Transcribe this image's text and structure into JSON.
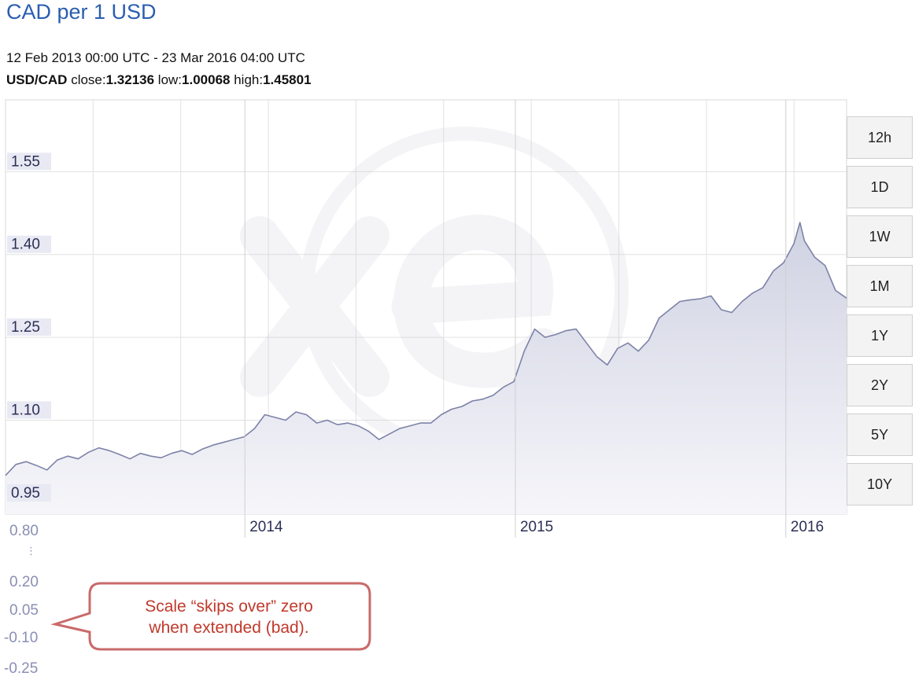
{
  "header": {
    "title": "CAD per 1 USD",
    "date_range": "12 Feb 2013 00:00 UTC - 23 Mar 2016 04:00 UTC",
    "pair": "USD/CAD",
    "close_label": "close:",
    "close_value": "1.32136",
    "low_label": "low:",
    "low_value": "1.00068",
    "high_label": "high:",
    "high_value": "1.45801"
  },
  "range_buttons": [
    "12h",
    "1D",
    "1W",
    "1M",
    "1Y",
    "2Y",
    "5Y",
    "10Y"
  ],
  "extended_scale": {
    "labels": [
      "0.80",
      "0.20",
      "0.05",
      "-0.10",
      "-0.25"
    ],
    "ellipsis": "⋮"
  },
  "callout": {
    "line1": "Scale “skips over” zero",
    "line2": "when extended (bad)."
  },
  "colors": {
    "title": "#2a5db0",
    "line": "#7d82a8",
    "area": "#e4e6f0",
    "axis_label": "#8a8fb3",
    "callout": "#c0392b",
    "grid": "#e1e1e1"
  },
  "chart_data": {
    "type": "area",
    "x": [
      "2013-02-12",
      "2013-02-26",
      "2013-03-12",
      "2013-03-26",
      "2013-04-09",
      "2013-04-23",
      "2013-05-07",
      "2013-05-21",
      "2013-06-04",
      "2013-06-18",
      "2013-07-02",
      "2013-07-16",
      "2013-07-30",
      "2013-08-13",
      "2013-08-27",
      "2013-09-10",
      "2013-09-24",
      "2013-10-08",
      "2013-10-22",
      "2013-11-05",
      "2013-11-19",
      "2013-12-03",
      "2013-12-17",
      "2013-12-31",
      "2014-01-14",
      "2014-01-28",
      "2014-02-11",
      "2014-02-25",
      "2014-03-11",
      "2014-03-25",
      "2014-04-08",
      "2014-04-22",
      "2014-05-06",
      "2014-05-20",
      "2014-06-03",
      "2014-06-17",
      "2014-07-01",
      "2014-07-15",
      "2014-07-29",
      "2014-08-12",
      "2014-08-26",
      "2014-09-09",
      "2014-09-23",
      "2014-10-07",
      "2014-10-21",
      "2014-11-04",
      "2014-11-18",
      "2014-12-02",
      "2014-12-16",
      "2014-12-30",
      "2015-01-13",
      "2015-01-27",
      "2015-02-10",
      "2015-02-24",
      "2015-03-10",
      "2015-03-24",
      "2015-04-07",
      "2015-04-21",
      "2015-05-05",
      "2015-05-19",
      "2015-06-02",
      "2015-06-16",
      "2015-06-30",
      "2015-07-14",
      "2015-07-28",
      "2015-08-11",
      "2015-08-25",
      "2015-09-08",
      "2015-09-22",
      "2015-10-06",
      "2015-10-20",
      "2015-11-03",
      "2015-11-17",
      "2015-12-01",
      "2015-12-15",
      "2015-12-29",
      "2016-01-12",
      "2016-01-20",
      "2016-01-26",
      "2016-02-09",
      "2016-02-23",
      "2016-03-08",
      "2016-03-23"
    ],
    "values": [
      1.0,
      1.02,
      1.025,
      1.018,
      1.01,
      1.028,
      1.035,
      1.03,
      1.042,
      1.05,
      1.045,
      1.038,
      1.03,
      1.04,
      1.035,
      1.032,
      1.04,
      1.045,
      1.038,
      1.048,
      1.055,
      1.06,
      1.065,
      1.07,
      1.085,
      1.11,
      1.105,
      1.1,
      1.115,
      1.11,
      1.095,
      1.1,
      1.092,
      1.095,
      1.09,
      1.08,
      1.065,
      1.075,
      1.085,
      1.09,
      1.095,
      1.095,
      1.11,
      1.12,
      1.125,
      1.135,
      1.138,
      1.145,
      1.16,
      1.17,
      1.225,
      1.265,
      1.25,
      1.255,
      1.262,
      1.265,
      1.24,
      1.215,
      1.2,
      1.23,
      1.24,
      1.225,
      1.245,
      1.285,
      1.3,
      1.315,
      1.318,
      1.32,
      1.325,
      1.3,
      1.295,
      1.315,
      1.33,
      1.34,
      1.37,
      1.385,
      1.42,
      1.458,
      1.425,
      1.395,
      1.38,
      1.335,
      1.321
    ],
    "title": "CAD per 1 USD",
    "y_ticks": [
      0.95,
      1.1,
      1.25,
      1.4,
      1.55
    ],
    "x_ticks": [
      "2014",
      "2015",
      "2016"
    ],
    "ylim": [
      0.93,
      1.68
    ],
    "xlim": [
      "2013-02-12",
      "2016-03-23"
    ],
    "grid": true
  }
}
